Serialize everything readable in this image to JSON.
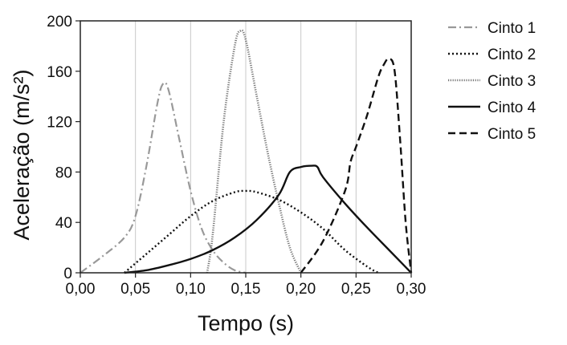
{
  "chart_data": {
    "type": "line",
    "xlabel": "Tempo (s)",
    "ylabel": "Aceleração (m/s²)",
    "xlim": [
      0,
      0.3
    ],
    "ylim": [
      0,
      200
    ],
    "xticks": [
      "0,00",
      "0,05",
      "0,10",
      "0,15",
      "0,20",
      "0,25",
      "0,30"
    ],
    "yticks": [
      "0",
      "40",
      "80",
      "120",
      "160",
      "200"
    ],
    "grid": "vertical-lines",
    "legend_position": "right",
    "series": [
      {
        "name": "Cinto 1",
        "style": "dash-dot",
        "color": "#999999",
        "x": [
          0.0,
          0.02,
          0.04,
          0.05,
          0.06,
          0.07,
          0.075,
          0.08,
          0.09,
          0.1,
          0.11,
          0.12,
          0.13,
          0.14,
          0.15
        ],
        "y": [
          0,
          13,
          28,
          45,
          85,
          135,
          150,
          145,
          105,
          65,
          35,
          18,
          8,
          2,
          0
        ]
      },
      {
        "name": "Cinto 2",
        "style": "dotted",
        "color": "#111111",
        "x": [
          0.04,
          0.06,
          0.08,
          0.1,
          0.12,
          0.14,
          0.15,
          0.16,
          0.18,
          0.2,
          0.22,
          0.24,
          0.26,
          0.27
        ],
        "y": [
          0,
          15,
          30,
          45,
          57,
          64,
          65,
          64,
          58,
          48,
          35,
          18,
          5,
          0
        ]
      },
      {
        "name": "Cinto 3",
        "style": "fine-dotted",
        "color": "#777777",
        "x": [
          0.115,
          0.12,
          0.13,
          0.14,
          0.145,
          0.15,
          0.16,
          0.17,
          0.18,
          0.19,
          0.2
        ],
        "y": [
          0,
          30,
          120,
          180,
          192,
          185,
          140,
          95,
          55,
          20,
          0
        ]
      },
      {
        "name": "Cinto 4",
        "style": "solid",
        "color": "#111111",
        "x": [
          0.04,
          0.06,
          0.08,
          0.1,
          0.12,
          0.14,
          0.16,
          0.18,
          0.19,
          0.2,
          0.21,
          0.215,
          0.22,
          0.24,
          0.26,
          0.28,
          0.3
        ],
        "y": [
          0,
          2,
          6,
          11,
          18,
          28,
          42,
          62,
          80,
          84,
          85,
          84,
          76,
          55,
          36,
          18,
          0
        ]
      },
      {
        "name": "Cinto 5",
        "style": "dashed",
        "color": "#111111",
        "x": [
          0.2,
          0.22,
          0.24,
          0.245,
          0.25,
          0.26,
          0.27,
          0.275,
          0.28,
          0.285,
          0.29,
          0.295,
          0.3
        ],
        "y": [
          0,
          25,
          65,
          88,
          100,
          125,
          155,
          165,
          170,
          160,
          105,
          40,
          0
        ]
      }
    ]
  }
}
